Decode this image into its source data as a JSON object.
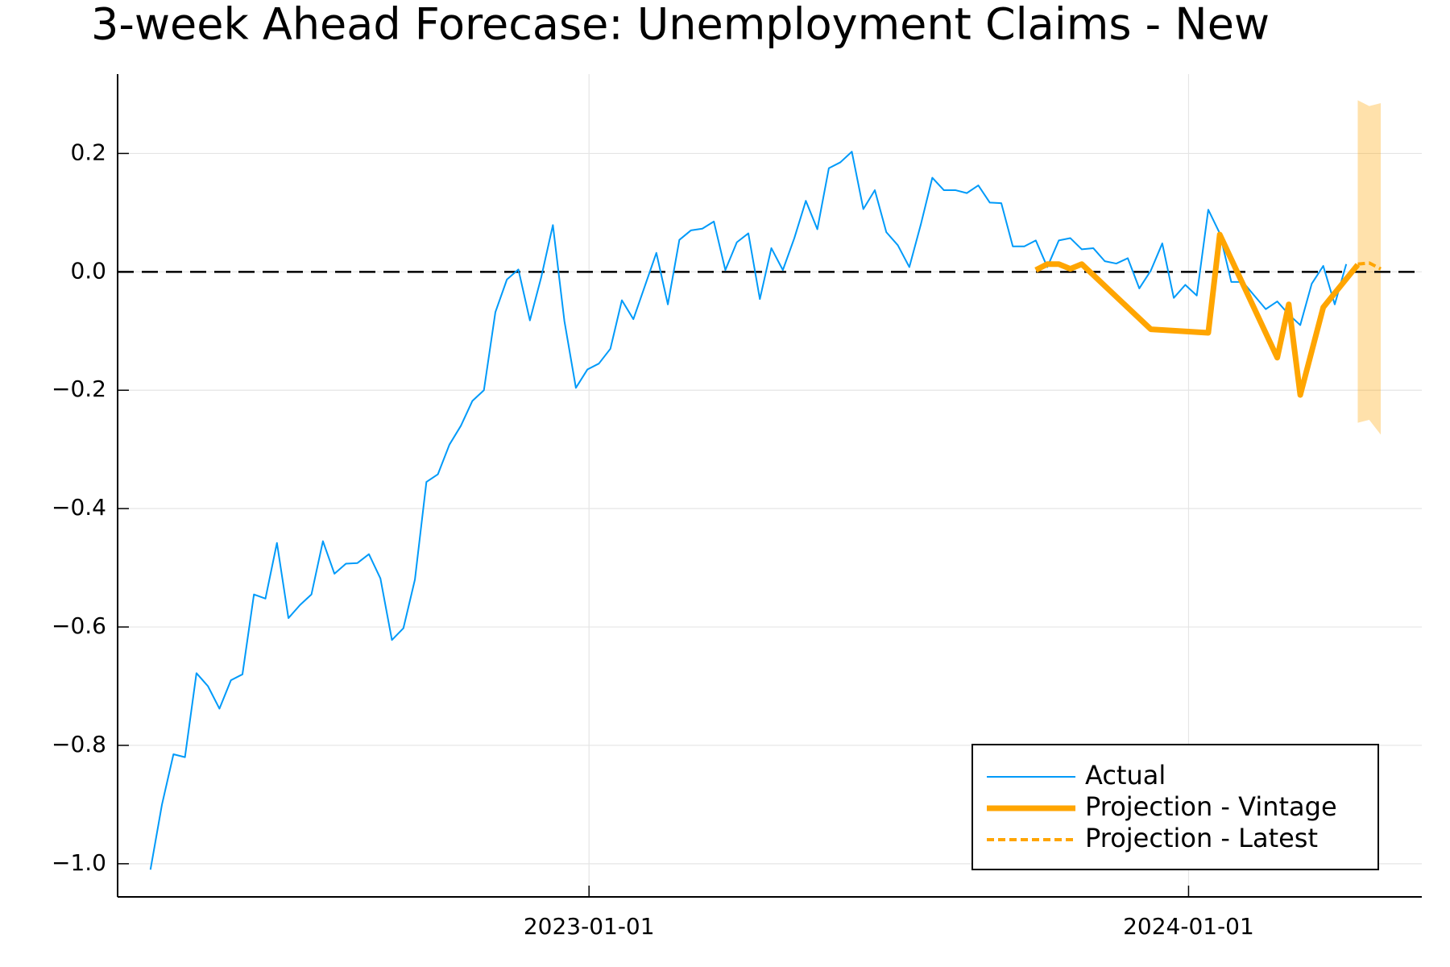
{
  "chart_data": {
    "type": "line",
    "title": "3-week Ahead Forecase: Unemployment Claims - New",
    "xlim": [
      "2022-03-20",
      "2024-05-22"
    ],
    "xticks": [
      "2023-01-01",
      "2024-01-01"
    ],
    "ylim": [
      -1.056,
      0.334
    ],
    "yticks": [
      0.2,
      {
        "value": 0,
        "label": "0.0"
      },
      {
        "value": -0.2,
        "label": "−0.2"
      },
      {
        "value": -0.4,
        "label": "−0.4"
      },
      {
        "value": -0.6,
        "label": "−0.6"
      },
      {
        "value": -0.8,
        "label": "−0.8"
      },
      {
        "value": -1.0,
        "label": "−1.0"
      }
    ],
    "grid": true,
    "hline": 0,
    "legend": "bottom-right",
    "band": {
      "color": "#ffa500",
      "x": [
        "2024-04-13",
        "2024-04-20",
        "2024-04-27"
      ],
      "lower": [
        -0.255,
        -0.25,
        -0.275
      ],
      "upper": [
        0.29,
        0.28,
        0.285
      ]
    },
    "series": [
      {
        "name": "Actual",
        "color": "#009af9",
        "linewidth": 2,
        "linestyle": "solid",
        "x": [
          "2022-04-09",
          "2022-04-16",
          "2022-04-23",
          "2022-04-30",
          "2022-05-07",
          "2022-05-14",
          "2022-05-21",
          "2022-05-28",
          "2022-06-04",
          "2022-06-11",
          "2022-06-18",
          "2022-06-25",
          "2022-07-02",
          "2022-07-09",
          "2022-07-16",
          "2022-07-23",
          "2022-07-30",
          "2022-08-06",
          "2022-08-13",
          "2022-08-20",
          "2022-08-27",
          "2022-09-03",
          "2022-09-10",
          "2022-09-17",
          "2022-09-24",
          "2022-10-01",
          "2022-10-08",
          "2022-10-15",
          "2022-10-22",
          "2022-10-29",
          "2022-11-05",
          "2022-11-12",
          "2022-11-19",
          "2022-11-26",
          "2022-12-03",
          "2022-12-10",
          "2022-12-17",
          "2022-12-24",
          "2022-12-31",
          "2023-01-07",
          "2023-01-14",
          "2023-01-21",
          "2023-01-28",
          "2023-02-04",
          "2023-02-11",
          "2023-02-18",
          "2023-02-25",
          "2023-03-04",
          "2023-03-11",
          "2023-03-18",
          "2023-03-25",
          "2023-04-01",
          "2023-04-08",
          "2023-04-15",
          "2023-04-22",
          "2023-04-29",
          "2023-05-06",
          "2023-05-13",
          "2023-05-20",
          "2023-05-27",
          "2023-06-03",
          "2023-06-10",
          "2023-06-17",
          "2023-06-24",
          "2023-07-01",
          "2023-07-08",
          "2023-07-15",
          "2023-07-22",
          "2023-07-29",
          "2023-08-05",
          "2023-08-12",
          "2023-08-19",
          "2023-08-26",
          "2023-09-02",
          "2023-09-09",
          "2023-09-16",
          "2023-09-23",
          "2023-09-30",
          "2023-10-07",
          "2023-10-14",
          "2023-10-21",
          "2023-10-28",
          "2023-11-04",
          "2023-11-11",
          "2023-11-18",
          "2023-11-25",
          "2023-12-02",
          "2023-12-09",
          "2023-12-16",
          "2023-12-23",
          "2023-12-30",
          "2024-01-06",
          "2024-01-13",
          "2024-01-20",
          "2024-01-27",
          "2024-02-03",
          "2024-02-10",
          "2024-02-17",
          "2024-02-24",
          "2024-03-02",
          "2024-03-09",
          "2024-03-16",
          "2024-03-23",
          "2024-03-30",
          "2024-04-06"
        ],
        "values": [
          -1.01,
          -0.9,
          -0.815,
          -0.82,
          -0.678,
          -0.7,
          -0.738,
          -0.69,
          -0.68,
          -0.545,
          -0.552,
          -0.458,
          -0.585,
          -0.563,
          -0.545,
          -0.455,
          -0.51,
          -0.493,
          -0.492,
          -0.477,
          -0.518,
          -0.622,
          -0.602,
          -0.52,
          -0.355,
          -0.342,
          -0.292,
          -0.26,
          -0.218,
          -0.2,
          -0.068,
          -0.013,
          0.004,
          -0.082,
          -0.008,
          0.079,
          -0.083,
          -0.196,
          -0.165,
          -0.155,
          -0.13,
          -0.048,
          -0.08,
          -0.024,
          0.032,
          -0.055,
          0.054,
          0.07,
          0.073,
          0.085,
          0.003,
          0.05,
          0.065,
          -0.046,
          0.04,
          0.003,
          0.057,
          0.12,
          0.072,
          0.175,
          0.185,
          0.203,
          0.106,
          0.138,
          0.067,
          0.045,
          0.008,
          0.08,
          0.159,
          0.138,
          0.138,
          0.133,
          0.146,
          0.117,
          0.116,
          0.043,
          0.043,
          0.053,
          0.008,
          0.053,
          0.057,
          0.038,
          0.04,
          0.018,
          0.014,
          0.023,
          -0.028,
          0.002,
          0.048,
          -0.044,
          -0.022,
          -0.04,
          0.105,
          0.065,
          -0.017,
          -0.017,
          -0.04,
          -0.063,
          -0.05,
          -0.072,
          -0.09,
          -0.02,
          0.01,
          -0.055,
          0.013
        ]
      },
      {
        "name": "Projection - Vintage",
        "color": "#ffa500",
        "linewidth": 7,
        "linestyle": "solid",
        "x": [
          "2023-09-30",
          "2023-10-07",
          "2023-10-14",
          "2023-10-21",
          "2023-10-28",
          "2023-12-09",
          "2024-01-13",
          "2024-01-20",
          "2024-02-24",
          "2024-03-02",
          "2024-03-09",
          "2024-03-23",
          "2024-04-13"
        ],
        "values": [
          0.003,
          0.013,
          0.013,
          0.005,
          0.013,
          -0.097,
          -0.103,
          0.063,
          -0.145,
          -0.055,
          -0.208,
          -0.06,
          0.012
        ]
      },
      {
        "name": "Projection - Latest",
        "color": "#ffa500",
        "linewidth": 4,
        "linestyle": "dash",
        "x": [
          "2024-04-13",
          "2024-04-20",
          "2024-04-27"
        ],
        "values": [
          0.013,
          0.015,
          0.005
        ]
      }
    ]
  }
}
